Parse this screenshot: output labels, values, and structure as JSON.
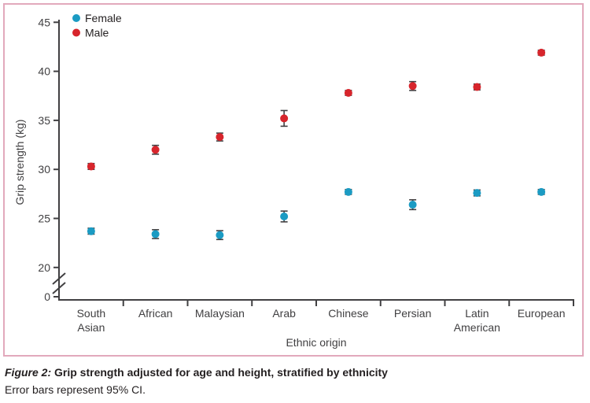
{
  "figure": {
    "caption_label": "Figure 2:",
    "caption_title": "Grip strength adjusted for age and height, stratified by ethnicity",
    "caption_note": "Error bars represent 95% CI."
  },
  "chart_data": {
    "type": "scatter",
    "title": "",
    "xlabel": "Ethnic origin",
    "ylabel": "Grip strength (kg)",
    "categories": [
      "South Asian",
      "African",
      "Malaysian",
      "Arab",
      "Chinese",
      "Persian",
      "Latin American",
      "European"
    ],
    "category_label_lines": [
      [
        "South",
        "Asian"
      ],
      [
        "African"
      ],
      [
        "Malaysian"
      ],
      [
        "Arab"
      ],
      [
        "Chinese"
      ],
      [
        "Persian"
      ],
      [
        "Latin",
        "American"
      ],
      [
        "European"
      ]
    ],
    "y_ticks": [
      0,
      20,
      25,
      30,
      35,
      40,
      45
    ],
    "ylim": [
      20,
      45
    ],
    "axis_break_between": [
      0,
      20
    ],
    "grid": false,
    "legend_position": "top-left-inside",
    "legend": [
      {
        "name": "Female",
        "color": "#1b9bc3"
      },
      {
        "name": "Male",
        "color": "#d7252c"
      }
    ],
    "series": [
      {
        "name": "Female",
        "color": "#1b9bc3",
        "values": [
          23.7,
          23.4,
          23.3,
          25.2,
          27.7,
          26.4,
          27.6,
          27.7
        ],
        "ci95_half_width": [
          0.3,
          0.45,
          0.45,
          0.55,
          0.25,
          0.5,
          0.3,
          0.25
        ]
      },
      {
        "name": "Male",
        "color": "#d7252c",
        "values": [
          30.3,
          32.0,
          33.3,
          35.2,
          37.8,
          38.5,
          38.4,
          41.9
        ],
        "ci95_half_width": [
          0.3,
          0.45,
          0.4,
          0.8,
          0.25,
          0.45,
          0.3,
          0.25
        ]
      }
    ]
  },
  "colors": {
    "axis": "#414042",
    "tick_text": "#414042",
    "caption_text": "#231f20",
    "frame_border": "#e2a9bc",
    "background": "#ffffff"
  }
}
